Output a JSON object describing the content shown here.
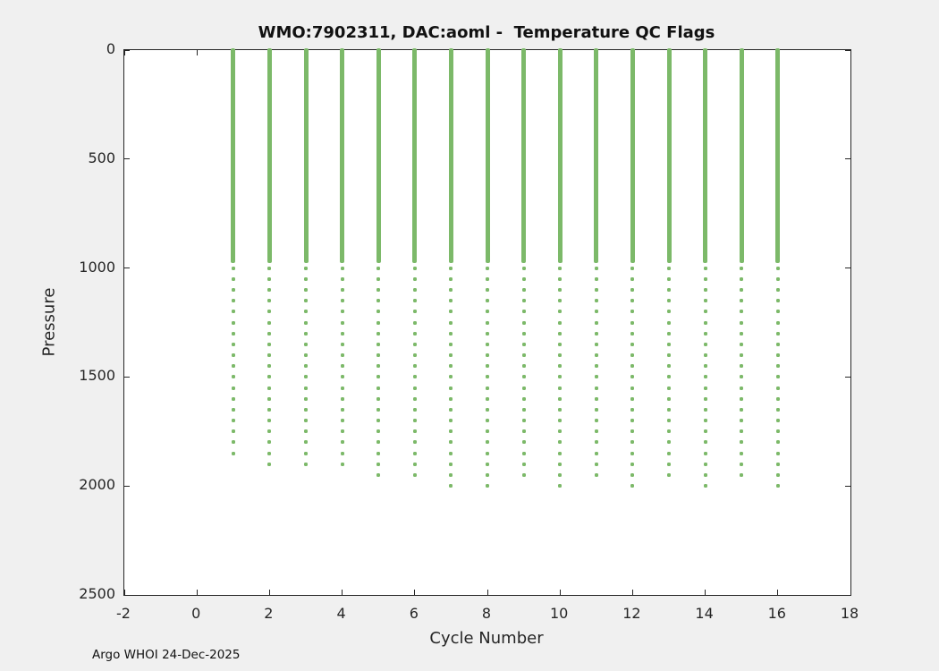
{
  "colors": {
    "figure_background": "#f0f0f0",
    "plot_background": "#ffffff",
    "axis": "#262626",
    "text": "#111111",
    "marker_green": "#7cb969"
  },
  "chart_data": {
    "type": "scatter",
    "title": "WMO:7902311, DAC:aoml -  Temperature QC Flags",
    "xlabel": "Cycle Number",
    "ylabel": "Pressure",
    "annotation": "Argo WHOI 24-Dec-2025",
    "xlim": [
      -2,
      18
    ],
    "ylim": [
      0,
      2500
    ],
    "y_inverted": true,
    "xticks": [
      -2,
      0,
      2,
      4,
      6,
      8,
      10,
      12,
      14,
      16,
      18
    ],
    "yticks": [
      0,
      500,
      1000,
      1500,
      2000,
      2500
    ],
    "grid": false,
    "legend": "none",
    "marker_color": "#7cb969",
    "surface_segment": {
      "start_pressure": 0,
      "end_pressure": 1000
    },
    "deep_dots": {
      "start_pressure": 1050,
      "step": 50
    },
    "profiles": [
      {
        "cycle": 1,
        "max_pressure": 1850
      },
      {
        "cycle": 2,
        "max_pressure": 1900
      },
      {
        "cycle": 3,
        "max_pressure": 1900
      },
      {
        "cycle": 4,
        "max_pressure": 1900
      },
      {
        "cycle": 5,
        "max_pressure": 1950
      },
      {
        "cycle": 6,
        "max_pressure": 1950
      },
      {
        "cycle": 7,
        "max_pressure": 2000
      },
      {
        "cycle": 8,
        "max_pressure": 2000
      },
      {
        "cycle": 9,
        "max_pressure": 1950
      },
      {
        "cycle": 10,
        "max_pressure": 2000
      },
      {
        "cycle": 11,
        "max_pressure": 1950
      },
      {
        "cycle": 12,
        "max_pressure": 2000
      },
      {
        "cycle": 13,
        "max_pressure": 1950
      },
      {
        "cycle": 14,
        "max_pressure": 2000
      },
      {
        "cycle": 15,
        "max_pressure": 1950
      },
      {
        "cycle": 16,
        "max_pressure": 2000
      }
    ]
  }
}
